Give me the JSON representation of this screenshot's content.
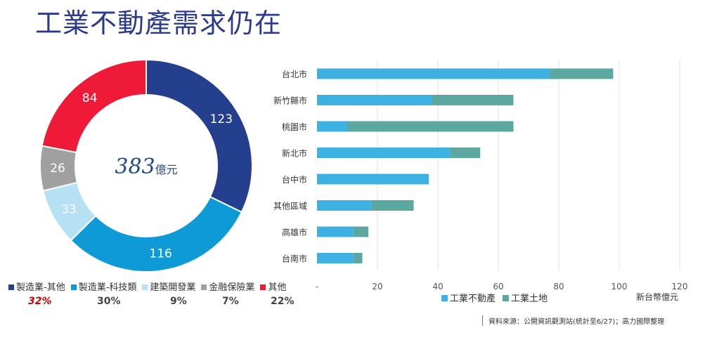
{
  "title": "工業不動產需求仍在",
  "chart_data": [
    {
      "type": "pie",
      "donut": true,
      "center_label": {
        "value": "383",
        "unit": "億元"
      },
      "slices": [
        {
          "name": "製造業-其他",
          "value": 123,
          "percent": "32%",
          "color": "#253f8f"
        },
        {
          "name": "製造業-科技類",
          "value": 116,
          "percent": "30%",
          "color": "#0d9ad7"
        },
        {
          "name": "建築開發業",
          "value": 33,
          "percent": "9%",
          "color": "#b6e1f4"
        },
        {
          "name": "金融保險業",
          "value": 26,
          "percent": "7%",
          "color": "#a0a0a0"
        },
        {
          "name": "其他",
          "value": 84,
          "percent": "22%",
          "color": "#ee1a37"
        }
      ],
      "legend": "bottom"
    },
    {
      "type": "bar",
      "orientation": "horizontal",
      "stacked": true,
      "categories": [
        "台北市",
        "新竹縣市",
        "桃園市",
        "新北市",
        "台中市",
        "其他區域",
        "高雄市",
        "台南市"
      ],
      "series": [
        {
          "name": "工業不動產",
          "color": "#3eb1e3",
          "values": [
            77,
            38,
            10,
            44,
            37,
            18,
            12,
            12
          ]
        },
        {
          "name": "工業土地",
          "color": "#5ca8a0",
          "values": [
            21,
            27,
            55,
            10,
            0,
            14,
            5,
            3
          ]
        }
      ],
      "xlim": [
        0,
        120
      ],
      "xticks": [
        "-",
        "20",
        "40",
        "60",
        "80",
        "100",
        "120"
      ],
      "unit": "新台幣億元",
      "grid": "vertical",
      "legend": "bottom"
    }
  ],
  "source": "資料來源：公開資訊觀測站(統計至6/27)；高力國際整理"
}
